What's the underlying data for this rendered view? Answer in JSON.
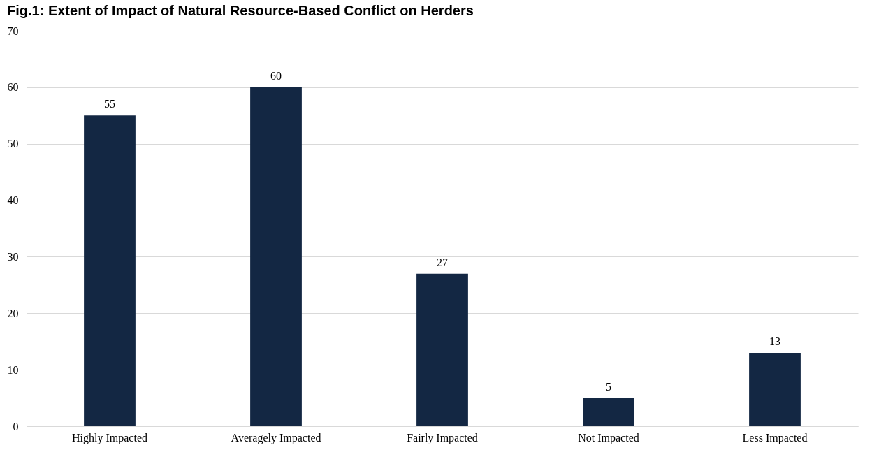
{
  "chart_data": {
    "type": "bar",
    "title": "Fig.1: Extent of Impact of Natural Resource-Based Conflict on Herders",
    "categories": [
      "Highly Impacted",
      "Averagely Impacted",
      "Fairly Impacted",
      "Not Impacted",
      "Less Impacted"
    ],
    "values": [
      55,
      60,
      27,
      5,
      13
    ],
    "color": "#132743",
    "ylim": [
      0,
      70
    ],
    "yticks": [
      0,
      10,
      20,
      30,
      40,
      50,
      60,
      70
    ],
    "grid": "y",
    "data_labels": true
  }
}
